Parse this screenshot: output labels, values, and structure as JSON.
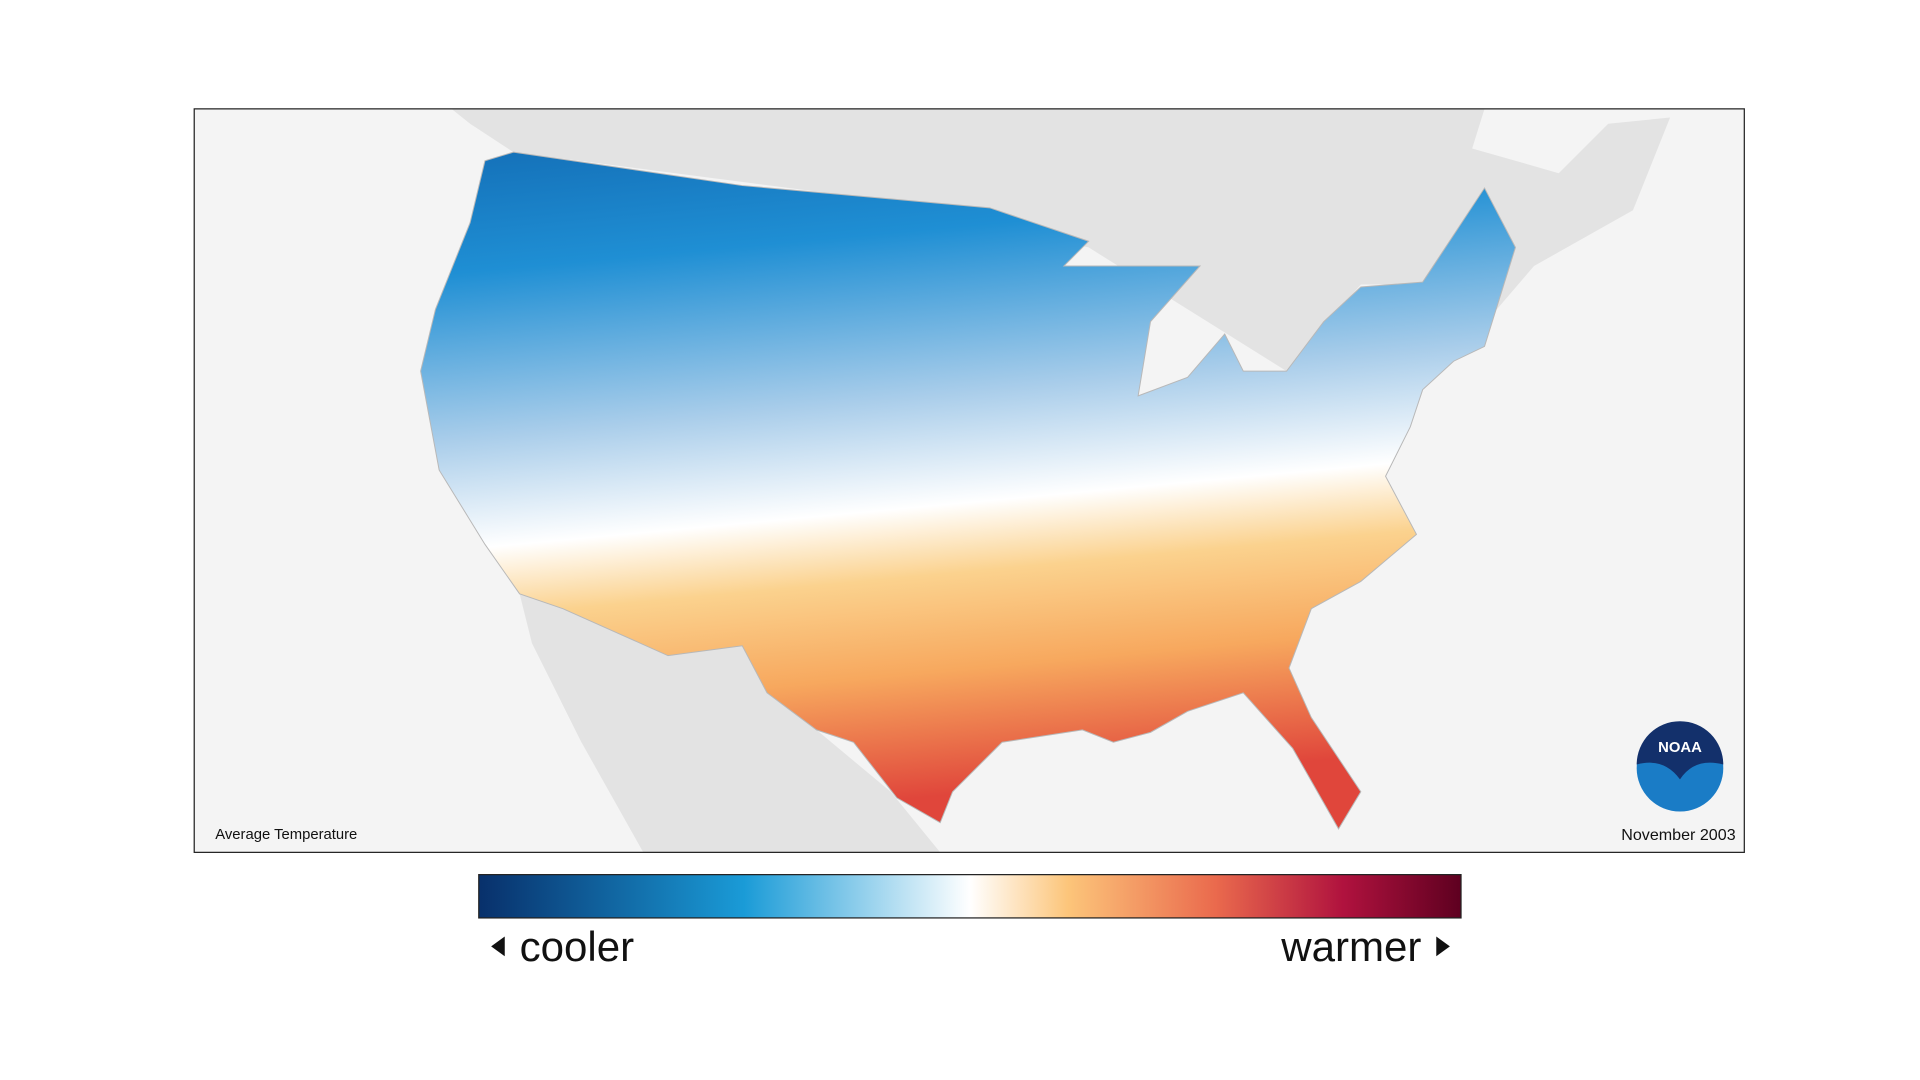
{
  "map": {
    "title": "Average Temperature",
    "date": "November 2003",
    "logo": "NOAA"
  },
  "legend": {
    "low_label": "cooler",
    "high_label": "warmer"
  }
}
